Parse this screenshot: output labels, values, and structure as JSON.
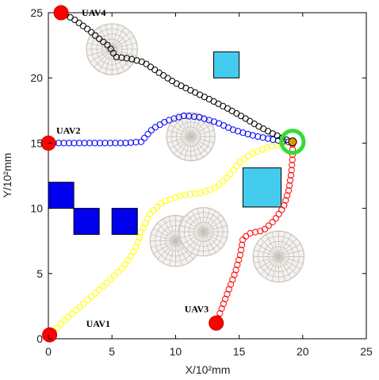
{
  "chart_data": {
    "type": "scatter",
    "title": "",
    "xlabel": "X/10²mm",
    "ylabel": "Y/10²mm",
    "xlim": [
      0,
      25
    ],
    "ylim": [
      0,
      25
    ],
    "xticks": [
      "0",
      "5",
      "10",
      "15",
      "20",
      "25"
    ],
    "yticks": [
      "0",
      "5",
      "10",
      "15",
      "20",
      "25"
    ],
    "grid": false,
    "colors": {
      "uav1": "#ffff00",
      "uav2": "#0000ff",
      "uav3": "#ff0000",
      "uav4": "#000000",
      "start": "#ff0000",
      "goal": "#33dd33",
      "obstacle_dark": "#0000ee",
      "obstacle_light": "#44ccee",
      "threat_sphere": "#c8c0b8"
    },
    "goal": {
      "x": 19.2,
      "y": 15.1
    },
    "series": [
      {
        "name": "UAV1",
        "start": {
          "x": 0.1,
          "y": 0.3
        },
        "path": [
          [
            0.1,
            0.3
          ],
          [
            1.5,
            1.6
          ],
          [
            3.0,
            2.9
          ],
          [
            4.5,
            4.2
          ],
          [
            5.9,
            5.5
          ],
          [
            6.8,
            6.8
          ],
          [
            7.3,
            8.2
          ],
          [
            8.0,
            9.6
          ],
          [
            9.0,
            10.5
          ],
          [
            10.5,
            11.0
          ],
          [
            12.0,
            11.2
          ],
          [
            13.2,
            11.6
          ],
          [
            14.2,
            12.5
          ],
          [
            15.0,
            13.5
          ],
          [
            16.0,
            14.2
          ],
          [
            17.3,
            14.7
          ],
          [
            18.6,
            15.0
          ],
          [
            19.2,
            15.1
          ]
        ]
      },
      {
        "name": "UAV2",
        "start": {
          "x": 0.0,
          "y": 15.0
        },
        "path": [
          [
            0.0,
            15.0
          ],
          [
            2.0,
            15.0
          ],
          [
            4.0,
            15.0
          ],
          [
            6.0,
            15.0
          ],
          [
            7.3,
            15.1
          ],
          [
            8.2,
            16.1
          ],
          [
            9.3,
            16.7
          ],
          [
            10.6,
            17.1
          ],
          [
            11.8,
            17.0
          ],
          [
            13.2,
            16.6
          ],
          [
            14.6,
            16.0
          ],
          [
            16.0,
            15.6
          ],
          [
            17.5,
            15.3
          ],
          [
            18.7,
            15.1
          ],
          [
            19.2,
            15.1
          ]
        ]
      },
      {
        "name": "UAV3",
        "start": {
          "x": 13.2,
          "y": 1.2
        },
        "path": [
          [
            13.2,
            1.2
          ],
          [
            13.7,
            2.5
          ],
          [
            14.2,
            3.8
          ],
          [
            14.7,
            5.1
          ],
          [
            15.1,
            6.5
          ],
          [
            15.3,
            7.7
          ],
          [
            15.9,
            8.1
          ],
          [
            16.9,
            8.3
          ],
          [
            17.8,
            9.1
          ],
          [
            18.5,
            10.1
          ],
          [
            18.9,
            11.4
          ],
          [
            19.1,
            12.7
          ],
          [
            19.2,
            13.9
          ],
          [
            19.2,
            15.1
          ]
        ]
      },
      {
        "name": "UAV4",
        "start": {
          "x": 1.0,
          "y": 25.0
        },
        "path": [
          [
            1.0,
            25.0
          ],
          [
            2.0,
            24.5
          ],
          [
            3.0,
            23.8
          ],
          [
            4.0,
            23.0
          ],
          [
            4.8,
            22.4
          ],
          [
            5.3,
            21.6
          ],
          [
            6.3,
            21.5
          ],
          [
            7.5,
            21.2
          ],
          [
            8.7,
            20.4
          ],
          [
            10.0,
            19.6
          ],
          [
            11.5,
            18.9
          ],
          [
            13.0,
            18.2
          ],
          [
            14.2,
            17.6
          ],
          [
            15.3,
            17.0
          ],
          [
            16.5,
            16.3
          ],
          [
            17.7,
            15.7
          ],
          [
            18.6,
            15.3
          ],
          [
            19.2,
            15.1
          ]
        ]
      }
    ],
    "obstacles": [
      {
        "shape": "square",
        "color": "dark",
        "x0": 0.0,
        "x1": 2.0,
        "y0": 10.0,
        "y1": 12.0
      },
      {
        "shape": "square",
        "color": "dark",
        "x0": 2.0,
        "x1": 4.0,
        "y0": 8.0,
        "y1": 10.0
      },
      {
        "shape": "square",
        "color": "dark",
        "x0": 5.0,
        "x1": 7.0,
        "y0": 8.0,
        "y1": 10.0
      },
      {
        "shape": "square",
        "color": "light",
        "x0": 13.0,
        "x1": 15.0,
        "y0": 20.0,
        "y1": 22.0
      },
      {
        "shape": "square",
        "color": "light",
        "x0": 15.3,
        "x1": 18.3,
        "y0": 10.1,
        "y1": 13.1
      }
    ],
    "threats": [
      {
        "x": 5.0,
        "y": 22.2,
        "r": 2.0
      },
      {
        "x": 11.2,
        "y": 15.5,
        "r": 1.9
      },
      {
        "x": 10.0,
        "y": 7.5,
        "r": 2.0
      },
      {
        "x": 12.2,
        "y": 8.2,
        "r": 1.9
      },
      {
        "x": 18.1,
        "y": 6.3,
        "r": 2.0
      }
    ]
  }
}
